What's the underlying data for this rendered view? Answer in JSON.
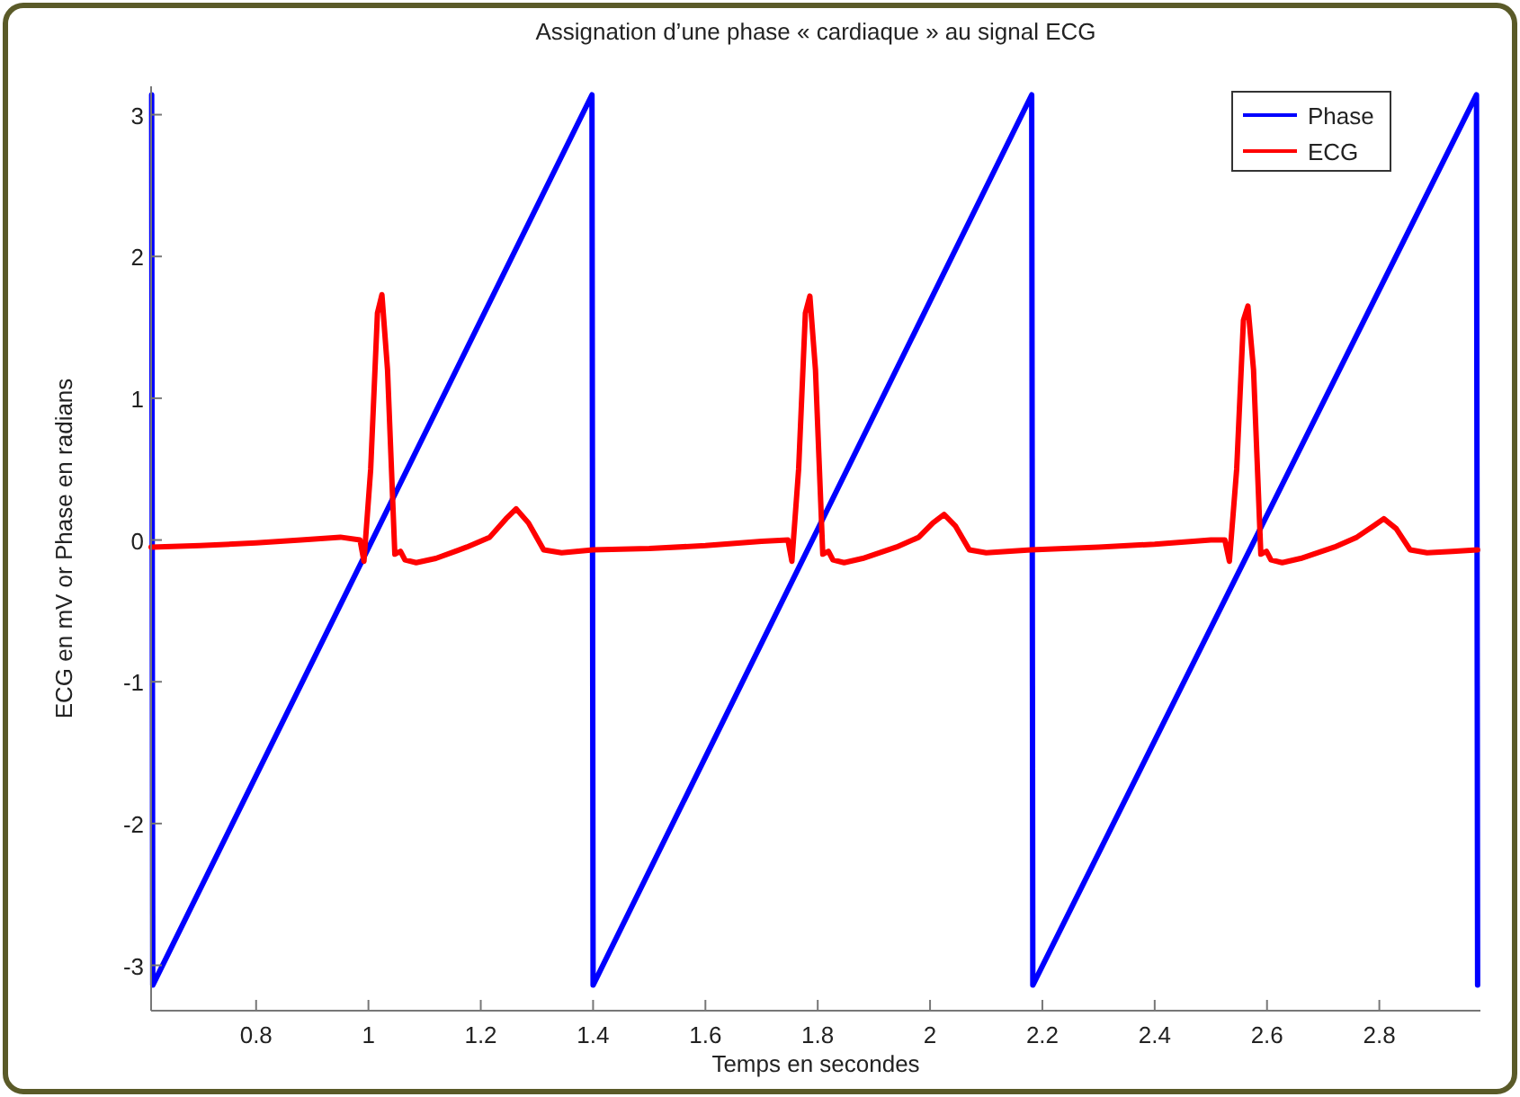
{
  "chart_data": {
    "type": "line",
    "title": "Assignation d’une phase « cardiaque » au signal ECG",
    "xlabel": "Temps en secondes",
    "ylabel": "ECG en mV or Phase en radians",
    "xlim": [
      0.613,
      2.98
    ],
    "ylim": [
      -3.32,
      3.2
    ],
    "xticks": [
      0.8,
      1,
      1.2,
      1.4,
      1.6,
      1.8,
      2,
      2.2,
      2.4,
      2.6,
      2.8
    ],
    "yticks": [
      -3,
      -2,
      -1,
      0,
      1,
      2,
      3
    ],
    "grid": false,
    "legend": "top right",
    "marker": "none",
    "line_style": "solid",
    "series": [
      {
        "name": "Phase",
        "color": "#0000ff",
        "x": [
          0.614,
          0.616,
          1.398,
          1.4,
          2.181,
          2.183,
          2.973,
          2.975
        ],
        "values": [
          3.14,
          -3.14,
          3.14,
          -3.14,
          3.14,
          -3.14,
          3.14,
          -3.14
        ]
      },
      {
        "name": "ECG",
        "color": "#ff0000",
        "x": [
          0.613,
          0.7,
          0.8,
          0.88,
          0.95,
          0.985,
          0.992,
          1.004,
          1.016,
          1.024,
          1.034,
          1.047,
          1.057,
          1.065,
          1.085,
          1.12,
          1.175,
          1.216,
          1.245,
          1.263,
          1.285,
          1.312,
          1.344,
          1.4,
          1.5,
          1.6,
          1.7,
          1.747,
          1.754,
          1.766,
          1.778,
          1.786,
          1.796,
          1.809,
          1.819,
          1.827,
          1.847,
          1.88,
          1.94,
          1.98,
          2.005,
          2.025,
          2.045,
          2.07,
          2.1,
          2.18,
          2.3,
          2.4,
          2.5,
          2.525,
          2.533,
          2.546,
          2.558,
          2.566,
          2.576,
          2.589,
          2.599,
          2.607,
          2.627,
          2.66,
          2.72,
          2.76,
          2.79,
          2.808,
          2.83,
          2.855,
          2.885,
          2.93,
          2.975
        ],
        "values": [
          -0.05,
          -0.04,
          -0.02,
          0,
          0.02,
          0,
          -0.15,
          0.5,
          1.6,
          1.73,
          1.2,
          -0.1,
          -0.08,
          -0.14,
          -0.16,
          -0.13,
          -0.05,
          0.02,
          0.15,
          0.22,
          0.12,
          -0.07,
          -0.09,
          -0.07,
          -0.06,
          -0.04,
          -0.01,
          0,
          -0.15,
          0.5,
          1.6,
          1.72,
          1.2,
          -0.1,
          -0.08,
          -0.14,
          -0.16,
          -0.13,
          -0.05,
          0.02,
          0.12,
          0.18,
          0.1,
          -0.07,
          -0.09,
          -0.07,
          -0.05,
          -0.03,
          0,
          0,
          -0.15,
          0.5,
          1.55,
          1.65,
          1.2,
          -0.1,
          -0.08,
          -0.14,
          -0.16,
          -0.13,
          -0.05,
          0.02,
          0.1,
          0.15,
          0.08,
          -0.07,
          -0.09,
          -0.08,
          -0.07
        ]
      }
    ]
  }
}
